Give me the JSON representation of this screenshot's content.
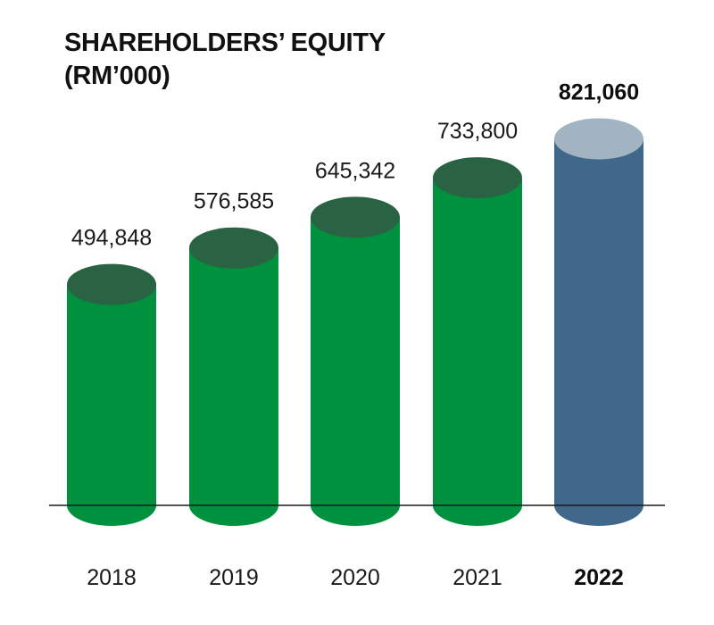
{
  "title": {
    "line1": "SHAREHOLDERS’ EQUITY",
    "line2": "(RM’000)"
  },
  "chart_data": {
    "type": "bar",
    "bar_style": "cylinder",
    "title": "SHAREHOLDERS’ EQUITY (RM’000)",
    "categories": [
      "2018",
      "2019",
      "2020",
      "2021",
      "2022"
    ],
    "values": [
      494848,
      576585,
      645342,
      733800,
      821060
    ],
    "value_labels": [
      "494,848",
      "576,585",
      "645,342",
      "733,800",
      "821,060"
    ],
    "highlight_index": 4,
    "colors": {
      "body": "#00913F",
      "top": "#2A6343",
      "highlight_body": "#40688A",
      "highlight_top": "#A2B4C2",
      "baseline": "#1a1a1a"
    },
    "xlabel": "",
    "ylabel": "",
    "grid": false
  }
}
